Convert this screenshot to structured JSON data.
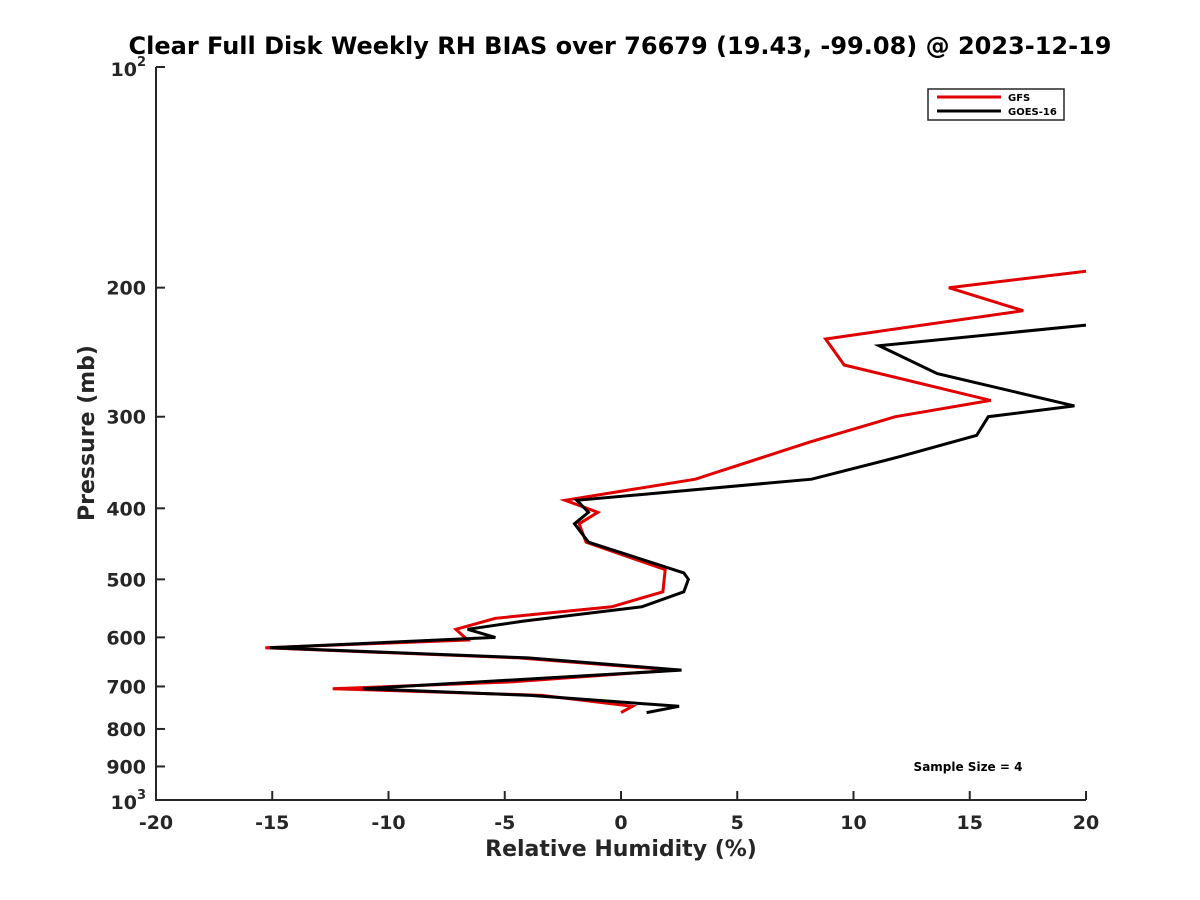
{
  "chart_data": {
    "type": "line",
    "title": "Clear Full Disk Weekly RH BIAS over 76679 (19.43, -99.08) @ 2023-12-19",
    "xlabel": "Relative Humidity (%)",
    "ylabel": "Pressure (mb)",
    "xlim": [
      -20,
      20
    ],
    "ylim": [
      100,
      1000
    ],
    "yscale": "log",
    "y_reversed": true,
    "grid": false,
    "legend_position": "top-right",
    "x_ticks": [
      "-20",
      "-15",
      "-10",
      "-5",
      "0",
      "5",
      "10",
      "15",
      "20"
    ],
    "y_ticks": [
      {
        "value": 100,
        "base": "10",
        "exp": "2"
      },
      {
        "value": 200,
        "label": "200"
      },
      {
        "value": 300,
        "label": "300"
      },
      {
        "value": 400,
        "label": "400"
      },
      {
        "value": 500,
        "label": "500"
      },
      {
        "value": 600,
        "label": "600"
      },
      {
        "value": 700,
        "label": "700"
      },
      {
        "value": 800,
        "label": "800"
      },
      {
        "value": 900,
        "label": "900"
      },
      {
        "value": 1000,
        "base": "10",
        "exp": "3"
      }
    ],
    "series": [
      {
        "name": "GFS",
        "color": "#e00000",
        "points": [
          [
            20,
            190
          ],
          [
            14.1,
            200
          ],
          [
            17.3,
            215
          ],
          [
            8.8,
            235
          ],
          [
            9.6,
            255
          ],
          [
            15.9,
            285
          ],
          [
            11.8,
            300
          ],
          [
            8.1,
            325
          ],
          [
            3.2,
            365
          ],
          [
            -2.4,
            390
          ],
          [
            -1.0,
            405
          ],
          [
            -1.8,
            420
          ],
          [
            -1.5,
            445
          ],
          [
            1.9,
            485
          ],
          [
            1.8,
            520
          ],
          [
            -0.4,
            545
          ],
          [
            -5.4,
            565
          ],
          [
            -7.1,
            585
          ],
          [
            -6.6,
            605
          ],
          [
            -15.3,
            620
          ],
          [
            -4.4,
            640
          ],
          [
            2.3,
            665
          ],
          [
            -4.7,
            690
          ],
          [
            -12.4,
            705
          ],
          [
            -3.4,
            720
          ],
          [
            0.5,
            745
          ],
          [
            0.0,
            760
          ]
        ]
      },
      {
        "name": "GOES-16",
        "color": "#000000",
        "points": [
          [
            20,
            225
          ],
          [
            11.1,
            240
          ],
          [
            13.6,
            262
          ],
          [
            19.5,
            290
          ],
          [
            15.8,
            300
          ],
          [
            15.3,
            318
          ],
          [
            12.0,
            340
          ],
          [
            8.2,
            365
          ],
          [
            -1.9,
            390
          ],
          [
            -1.4,
            405
          ],
          [
            -2.0,
            420
          ],
          [
            -1.4,
            445
          ],
          [
            2.7,
            490
          ],
          [
            2.9,
            500
          ],
          [
            2.7,
            520
          ],
          [
            0.9,
            545
          ],
          [
            -4.2,
            570
          ],
          [
            -6.6,
            585
          ],
          [
            -5.4,
            600
          ],
          [
            -15.1,
            620
          ],
          [
            -4.0,
            640
          ],
          [
            2.6,
            665
          ],
          [
            -11.1,
            705
          ],
          [
            -3.9,
            720
          ],
          [
            2.5,
            745
          ],
          [
            1.1,
            760
          ]
        ]
      }
    ],
    "annotation": "Sample Size = 4"
  }
}
